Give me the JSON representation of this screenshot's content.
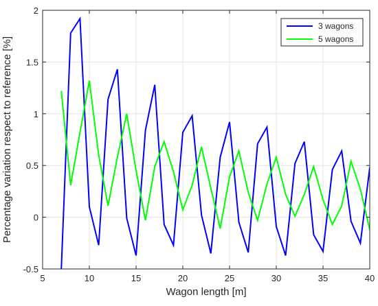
{
  "chart_data": {
    "type": "line",
    "title": "",
    "xlabel": "Wagon length [m]",
    "ylabel": "Percentage variation respect to reference [%]",
    "xlim": [
      5,
      40
    ],
    "ylim": [
      -0.5,
      2
    ],
    "xticks": [
      5,
      10,
      15,
      20,
      25,
      30,
      35,
      40
    ],
    "yticks": [
      -0.5,
      0,
      0.5,
      1,
      1.5,
      2
    ],
    "xtick_labels": [
      "5",
      "10",
      "15",
      "20",
      "25",
      "30",
      "35",
      "40"
    ],
    "ytick_labels": [
      "-0.5",
      "0",
      "0.5",
      "1",
      "1.5",
      "2"
    ],
    "grid": true,
    "legend_position": "top-right",
    "x": [
      7,
      8,
      9,
      10,
      11,
      12,
      13,
      14,
      15,
      16,
      17,
      18,
      19,
      20,
      21,
      22,
      23,
      24,
      25,
      26,
      27,
      28,
      29,
      30,
      31,
      32,
      33,
      34,
      35,
      36,
      37,
      38,
      39,
      40
    ],
    "series": [
      {
        "name": "3 wagons",
        "color": "#0000ff",
        "values": [
          -0.5,
          1.78,
          1.92,
          0.1,
          -0.27,
          1.14,
          1.43,
          -0.01,
          -0.37,
          0.84,
          1.28,
          -0.07,
          -0.27,
          0.82,
          0.98,
          0.02,
          -0.35,
          0.58,
          0.92,
          -0.05,
          -0.34,
          0.71,
          0.87,
          -0.09,
          -0.37,
          0.52,
          0.73,
          -0.17,
          -0.33,
          0.46,
          0.64,
          -0.04,
          -0.25,
          0.48
        ]
      },
      {
        "name": "5 wagons",
        "color": "#00ff00",
        "values": [
          1.22,
          0.31,
          0.82,
          1.32,
          0.6,
          0.11,
          0.58,
          1.0,
          0.45,
          -0.03,
          0.49,
          0.73,
          0.44,
          0.07,
          0.31,
          0.68,
          0.28,
          -0.11,
          0.39,
          0.64,
          0.24,
          -0.03,
          0.32,
          0.58,
          0.22,
          0.01,
          0.22,
          0.49,
          0.17,
          -0.07,
          0.11,
          0.54,
          0.27,
          -0.12
        ]
      }
    ]
  }
}
